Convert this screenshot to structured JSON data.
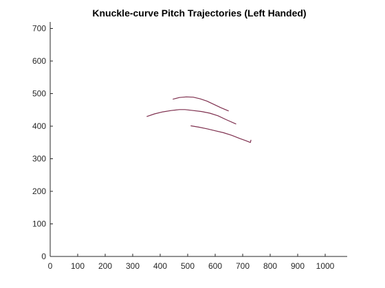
{
  "chart_data": {
    "type": "line",
    "title": "Knuckle-curve Pitch Trajectories (Left Handed)",
    "xlabel": "",
    "ylabel": "",
    "xlim": [
      0,
      1080
    ],
    "ylim": [
      0,
      720
    ],
    "xticks": [
      0,
      100,
      200,
      300,
      400,
      500,
      600,
      700,
      800,
      900,
      1000
    ],
    "yticks": [
      0,
      100,
      200,
      300,
      400,
      500,
      600,
      700
    ],
    "grid": false,
    "line_color": "#7E2F4E",
    "series": [
      {
        "x": [
          447,
          470,
          495,
          520,
          545,
          570,
          595,
          620,
          648
        ],
        "y": [
          483,
          488,
          490,
          489,
          484,
          477,
          467,
          457,
          447
        ]
      },
      {
        "x": [
          352,
          380,
          410,
          440,
          470,
          490,
          520,
          550,
          580,
          610,
          640,
          675
        ],
        "y": [
          430,
          438,
          444,
          448,
          451,
          451,
          448,
          445,
          440,
          432,
          420,
          407
        ]
      },
      {
        "x": [
          512,
          540,
          570,
          600,
          630,
          660,
          690,
          710,
          725,
          728,
          730
        ],
        "y": [
          401,
          397,
          392,
          386,
          380,
          372,
          362,
          356,
          351,
          350,
          357
        ]
      }
    ]
  }
}
